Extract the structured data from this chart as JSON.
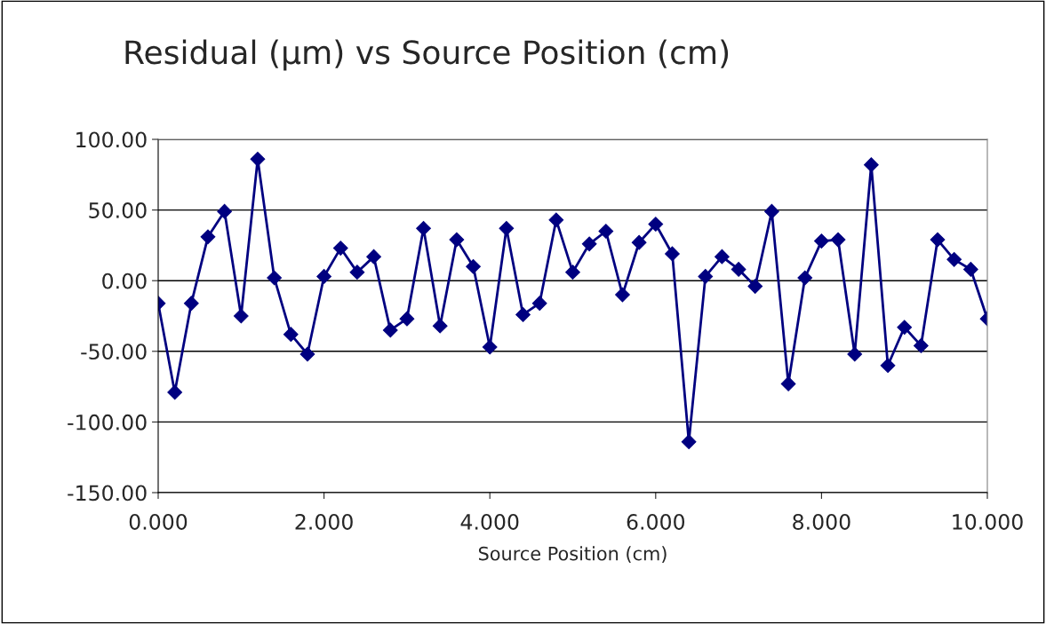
{
  "chart_data": {
    "type": "line",
    "title": "Residual (µm) vs Source Position (cm)",
    "xlabel": "Source Position (cm)",
    "x": [
      0,
      0.2,
      0.4,
      0.6,
      0.8,
      1.0,
      1.2,
      1.4,
      1.6,
      1.8,
      2.0,
      2.2,
      2.4,
      2.6,
      2.8,
      3.0,
      3.2,
      3.4,
      3.6,
      3.8,
      4.0,
      4.2,
      4.4,
      4.6,
      4.8,
      5.0,
      5.2,
      5.4,
      5.6,
      5.8,
      6.0,
      6.2,
      6.4,
      6.6,
      6.8,
      7.0,
      7.2,
      7.4,
      7.6,
      7.8,
      8.0,
      8.2,
      8.4,
      8.6,
      8.8,
      9.0,
      9.2,
      9.4,
      9.6,
      9.8,
      10.0
    ],
    "series": [
      {
        "color": "#000080",
        "values": [
          -16,
          -79,
          -16,
          31,
          49,
          -25,
          86,
          2,
          -38,
          -52,
          3,
          23,
          6,
          17,
          -35,
          -27,
          37,
          -32,
          29,
          10,
          -47,
          37,
          -24,
          -16,
          43,
          6,
          26,
          35,
          -10,
          27,
          40,
          19,
          -114,
          3,
          17,
          8,
          -4,
          49,
          -73,
          2,
          28,
          29,
          -52,
          82,
          -60,
          -33,
          -46,
          29,
          15,
          8,
          -27
        ]
      }
    ],
    "xlim": [
      0,
      10
    ],
    "xticks": [
      {
        "value": 0,
        "label": "0.000"
      },
      {
        "value": 2,
        "label": "2.000"
      },
      {
        "value": 4,
        "label": "4.000"
      },
      {
        "value": 6,
        "label": "6.000"
      },
      {
        "value": 8,
        "label": "8.000"
      },
      {
        "value": 10,
        "label": "10.000"
      }
    ],
    "ylim": [
      -150,
      100
    ],
    "yticks": [
      {
        "value": -150,
        "label": "-150.00"
      },
      {
        "value": -100,
        "label": "-100.00"
      },
      {
        "value": -50,
        "label": "-50.00"
      },
      {
        "value": 0,
        "label": "0.00"
      },
      {
        "value": 50,
        "label": "50.00"
      },
      {
        "value": 100,
        "label": "100.00"
      }
    ],
    "grid": "y",
    "marker": "diamond",
    "line_style": "solid"
  }
}
